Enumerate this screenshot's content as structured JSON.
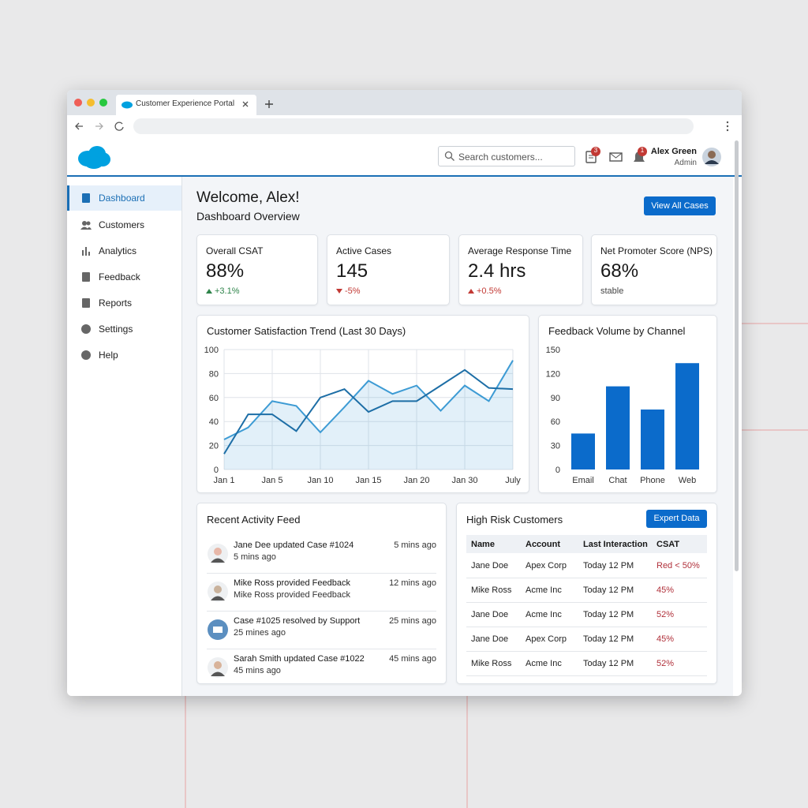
{
  "browser": {
    "tab_title": "Customer Experience Portal"
  },
  "header": {
    "search_placeholder": "Search customers...",
    "badges": [
      3,
      1
    ],
    "user_name": "Alex Green",
    "user_role": "Admin"
  },
  "sidebar": {
    "items": [
      "Dashboard",
      "Customers",
      "Analytics",
      "Feedback",
      "Reports",
      "Settings",
      "Help"
    ]
  },
  "welcome": {
    "title": "Welcome, Alex!",
    "subtitle": "Dashboard Overview",
    "button": "View All Cases"
  },
  "kpis": [
    {
      "label": "Overall CSAT",
      "value": "88%",
      "delta": "+3.1%",
      "trend": "up",
      "color": "#2e844a"
    },
    {
      "label": "Active Cases",
      "value": "145",
      "delta": "-5%",
      "trend": "down",
      "color": "#c23934"
    },
    {
      "label": "Average Response Time",
      "value": "2.4 hrs",
      "delta": "+0.5%",
      "trend": "up",
      "color": "#c23934"
    },
    {
      "label": "Net Promoter Score (NPS)",
      "value": "68%",
      "delta": "stable",
      "color": "#444444"
    }
  ],
  "chart_data": [
    {
      "type": "line",
      "title": "Customer Satisfaction Trend (Last 30 Days)",
      "categories": [
        "Jan 1",
        null,
        "Jan 5",
        null,
        "Jan 10",
        null,
        "Jan 15",
        null,
        "Jan 20",
        null,
        "Jan 30",
        null,
        "July"
      ],
      "series": [
        {
          "color": "#3d9bd4",
          "area": true,
          "values": [
            25,
            35,
            57,
            53,
            31,
            52,
            74,
            63,
            70,
            49,
            70,
            57,
            91
          ]
        },
        {
          "color": "#1d6ea6",
          "values": [
            13,
            46,
            46,
            32,
            60,
            67,
            48,
            57,
            57,
            70,
            83,
            68,
            67
          ]
        }
      ],
      "ylim": [
        0,
        100
      ],
      "yticks": [
        0,
        20,
        40,
        60,
        80,
        100
      ],
      "grid": true
    },
    {
      "type": "bar",
      "title": "Feedback Volume by Channel",
      "categories": [
        "Email",
        "Chat",
        "Phone",
        "Web"
      ],
      "values": [
        45,
        104,
        75,
        133
      ],
      "color": "#0b6bcb",
      "ylim": [
        0,
        150
      ],
      "yticks": [
        0,
        30,
        60,
        90,
        120,
        150
      ],
      "grid": false
    }
  ],
  "activity": {
    "title": "Recent Activity Feed",
    "items": [
      {
        "text": "Jane Dee updated Case #1024",
        "sub": "5 mins ago",
        "time": "5 mins ago"
      },
      {
        "text": "Mike Ross provided Feedback",
        "sub": "Mike Ross provided Feedback",
        "time": "12 mins ago"
      },
      {
        "text": "Case #1025 resolved by Support",
        "sub": "25 mines ago",
        "time": "25 mins ago"
      },
      {
        "text": "Sarah Smith updated Case #1022",
        "sub": "45 mins ago",
        "time": "45 mins ago"
      }
    ]
  },
  "risk": {
    "title": "High Risk Customers",
    "button": "Expert Data",
    "columns": [
      "Name",
      "Account",
      "Last Interaction",
      "CSAT"
    ],
    "rows": [
      [
        "Jane Doe",
        "Apex Corp",
        "Today 12 PM",
        "Red < 50%"
      ],
      [
        "Mike Ross",
        "Acme Inc",
        "Today 12 PM",
        "45%"
      ],
      [
        "Jane Doe",
        "Acme Inc",
        "Today 12 PM",
        "52%"
      ],
      [
        "Jane Doe",
        "Apex Corp",
        "Today 12 PM",
        "45%"
      ],
      [
        "Mike Ross",
        "Acme Inc",
        "Today 12 PM",
        "52%"
      ]
    ]
  }
}
